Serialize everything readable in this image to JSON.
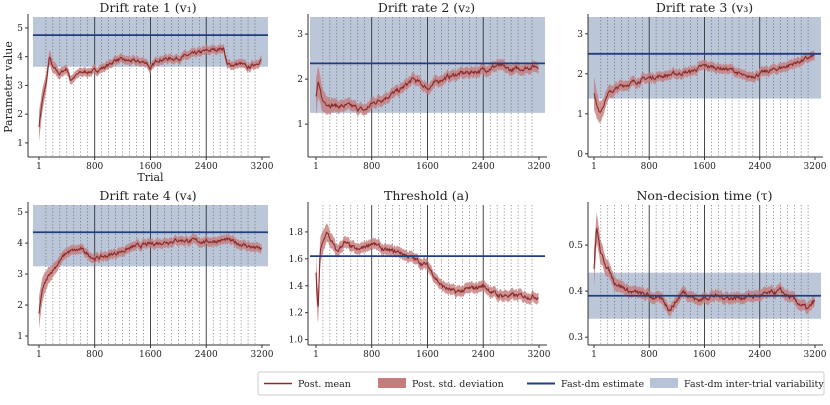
{
  "colors": {
    "mean": "#8b2a2a",
    "sd": "#c47c7c",
    "estimate": "#1f3f80",
    "variability": "#b7c3d7"
  },
  "chart_data": [
    {
      "type": "line",
      "title": "Drift rate 1 (v₁)",
      "xlabel": "Trial",
      "ylabel": "Parameter value",
      "xticks": [
        "1",
        "800",
        "1600",
        "2400",
        "3200"
      ],
      "xlim": [
        1,
        3200
      ],
      "ylim": [
        0.51,
        5.38
      ],
      "yticks": [
        1,
        2,
        3,
        4,
        5
      ],
      "ytick_labels": [
        "1",
        "2",
        "3",
        "4",
        "5"
      ],
      "estimate": 4.75,
      "variability": [
        3.65,
        5.38
      ],
      "sd": 0.15,
      "mean": [
        [
          1,
          1.6
        ],
        [
          50,
          2.5
        ],
        [
          100,
          3.0
        ],
        [
          150,
          4.0
        ],
        [
          200,
          3.6
        ],
        [
          300,
          3.4
        ],
        [
          400,
          3.6
        ],
        [
          450,
          3.2
        ],
        [
          600,
          3.45
        ],
        [
          800,
          3.5
        ],
        [
          1000,
          3.7
        ],
        [
          1100,
          3.9
        ],
        [
          1300,
          3.85
        ],
        [
          1550,
          3.8
        ],
        [
          1600,
          3.55
        ],
        [
          1700,
          3.9
        ],
        [
          2000,
          3.95
        ],
        [
          2400,
          4.2
        ],
        [
          2650,
          4.3
        ],
        [
          2700,
          3.7
        ],
        [
          2900,
          3.75
        ],
        [
          3000,
          3.6
        ],
        [
          3200,
          3.9
        ]
      ]
    },
    {
      "type": "line",
      "title": "Drift rate 2 (v₂)",
      "xlabel": "",
      "ylabel": "",
      "xticks": [
        "1",
        "800",
        "1600",
        "2400",
        "3200"
      ],
      "xlim": [
        1,
        3200
      ],
      "ylim": [
        0.27,
        3.38
      ],
      "yticks": [
        1,
        2,
        3
      ],
      "ytick_labels": [
        "1",
        "2",
        "3"
      ],
      "estimate": 2.35,
      "variability": [
        1.25,
        3.38
      ],
      "sd": 0.12,
      "mean": [
        [
          1,
          1.6
        ],
        [
          30,
          1.9
        ],
        [
          100,
          1.5
        ],
        [
          300,
          1.4
        ],
        [
          500,
          1.4
        ],
        [
          700,
          1.3
        ],
        [
          800,
          1.45
        ],
        [
          1000,
          1.6
        ],
        [
          1200,
          1.75
        ],
        [
          1400,
          2.0
        ],
        [
          1600,
          1.8
        ],
        [
          1800,
          2.0
        ],
        [
          2000,
          2.1
        ],
        [
          2400,
          2.2
        ],
        [
          2600,
          2.3
        ],
        [
          2800,
          2.2
        ],
        [
          3200,
          2.3
        ]
      ]
    },
    {
      "type": "line",
      "title": "Drift rate 3 (v₃)",
      "xlabel": "",
      "ylabel": "",
      "xticks": [
        "1",
        "800",
        "1600",
        "2400",
        "3200"
      ],
      "xlim": [
        1,
        3200
      ],
      "ylim": [
        -0.08,
        3.42
      ],
      "yticks": [
        0,
        1,
        2,
        3
      ],
      "ytick_labels": [
        "0",
        "1",
        "2",
        "3"
      ],
      "estimate": 2.5,
      "variability": [
        1.38,
        3.42
      ],
      "sd": 0.12,
      "mean": [
        [
          1,
          1.5
        ],
        [
          80,
          1.0
        ],
        [
          200,
          1.5
        ],
        [
          400,
          1.7
        ],
        [
          800,
          1.9
        ],
        [
          1200,
          2.0
        ],
        [
          1400,
          2.05
        ],
        [
          1600,
          2.2
        ],
        [
          2000,
          2.1
        ],
        [
          2200,
          1.9
        ],
        [
          2400,
          2.0
        ],
        [
          2800,
          2.2
        ],
        [
          3200,
          2.45
        ]
      ]
    },
    {
      "type": "line",
      "title": "Drift rate 4 (v₄)",
      "xlabel": "",
      "ylabel": "",
      "xticks": [
        "1",
        "800",
        "1600",
        "2400",
        "3200"
      ],
      "xlim": [
        1,
        3200
      ],
      "ylim": [
        0.71,
        5.23
      ],
      "yticks": [
        1,
        2,
        3,
        4,
        5
      ],
      "ytick_labels": [
        "1",
        "2",
        "3",
        "4",
        "5"
      ],
      "estimate": 4.35,
      "variability": [
        3.25,
        5.23
      ],
      "sd": 0.15,
      "mean": [
        [
          1,
          1.7
        ],
        [
          50,
          2.5
        ],
        [
          150,
          3.0
        ],
        [
          400,
          3.7
        ],
        [
          600,
          3.8
        ],
        [
          800,
          3.5
        ],
        [
          1000,
          3.6
        ],
        [
          1400,
          3.9
        ],
        [
          2000,
          4.1
        ],
        [
          2400,
          4.05
        ],
        [
          2700,
          4.1
        ],
        [
          3000,
          3.9
        ],
        [
          3200,
          3.8
        ]
      ]
    },
    {
      "type": "line",
      "title": "Threshold (a)",
      "xlabel": "",
      "ylabel": "",
      "xticks": [
        "1",
        "800",
        "1600",
        "2400",
        "3200"
      ],
      "xlim": [
        1,
        3200
      ],
      "ylim": [
        0.96,
        2.0
      ],
      "yticks": [
        1.0,
        1.2,
        1.4,
        1.6,
        1.8
      ],
      "ytick_labels": [
        "1.0",
        "1.2",
        "1.4",
        "1.6",
        "1.8"
      ],
      "estimate": 1.62,
      "variability": null,
      "sd": 0.04,
      "mean": [
        [
          1,
          1.5
        ],
        [
          30,
          1.2
        ],
        [
          60,
          1.65
        ],
        [
          150,
          1.8
        ],
        [
          300,
          1.65
        ],
        [
          400,
          1.72
        ],
        [
          600,
          1.66
        ],
        [
          800,
          1.72
        ],
        [
          1000,
          1.66
        ],
        [
          1200,
          1.65
        ],
        [
          1400,
          1.6
        ],
        [
          1600,
          1.55
        ],
        [
          1800,
          1.4
        ],
        [
          2000,
          1.35
        ],
        [
          2400,
          1.4
        ],
        [
          2600,
          1.33
        ],
        [
          3200,
          1.32
        ]
      ]
    },
    {
      "type": "line",
      "title": "Non-decision time (τ)",
      "xlabel": "",
      "ylabel": "",
      "xticks": [
        "1",
        "800",
        "1600",
        "2400",
        "3200"
      ],
      "xlim": [
        1,
        3200
      ],
      "ylim": [
        0.283,
        0.587
      ],
      "yticks": [
        0.3,
        0.4,
        0.5
      ],
      "ytick_labels": [
        "0.3",
        "0.4",
        "0.5"
      ],
      "estimate": 0.39,
      "variability": [
        0.34,
        0.44
      ],
      "sd": 0.012,
      "mean": [
        [
          1,
          0.45
        ],
        [
          40,
          0.54
        ],
        [
          100,
          0.48
        ],
        [
          300,
          0.42
        ],
        [
          500,
          0.4
        ],
        [
          800,
          0.39
        ],
        [
          1000,
          0.38
        ],
        [
          1100,
          0.36
        ],
        [
          1300,
          0.4
        ],
        [
          1500,
          0.38
        ],
        [
          1700,
          0.39
        ],
        [
          2000,
          0.385
        ],
        [
          2400,
          0.39
        ],
        [
          2700,
          0.4
        ],
        [
          3000,
          0.37
        ],
        [
          3100,
          0.36
        ],
        [
          3200,
          0.38
        ]
      ]
    }
  ],
  "legend": [
    "Post. mean",
    "Post. std. deviation",
    "Fast-dm estimate",
    "Fast-dm inter-trial variability"
  ]
}
